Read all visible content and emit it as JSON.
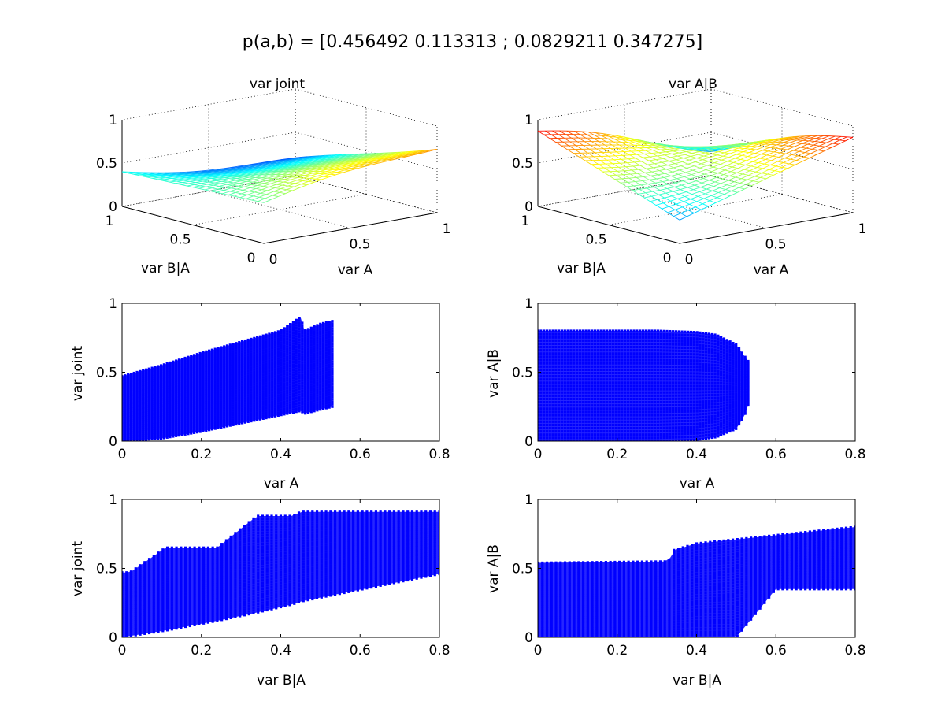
{
  "figure": {
    "title": "p(a,b) = [0.456492 0.113313 ; 0.0829211 0.347275]"
  },
  "chart_data": [
    {
      "id": "surf-joint",
      "type": "surface",
      "title": "var joint",
      "xlabel": "var A",
      "ylabel": "var B|A",
      "xlim": [
        0,
        1
      ],
      "ylim": [
        0,
        1
      ],
      "zlim": [
        0,
        1
      ],
      "xticks": [
        "0",
        "0.5",
        "1"
      ],
      "yticks": [
        "0",
        "0.5",
        "1"
      ],
      "zticks": [
        "0",
        "0.5",
        "1"
      ],
      "colormap": "jet",
      "grid": true
    },
    {
      "id": "surf-a-given-b",
      "type": "surface",
      "title": "var A|B",
      "xlabel": "var A",
      "ylabel": "var B|A",
      "xlim": [
        0,
        1
      ],
      "ylim": [
        0,
        1
      ],
      "zlim": [
        0,
        1
      ],
      "xticks": [
        "0",
        "0.5",
        "1"
      ],
      "yticks": [
        "0",
        "0.5",
        "1"
      ],
      "zticks": [
        "0",
        "0.5",
        "1"
      ],
      "colormap": "jet",
      "grid": true
    },
    {
      "id": "scatter-joint-vs-a",
      "type": "scatter",
      "xlabel": "var A",
      "ylabel": "var joint",
      "xlim": [
        0,
        0.8
      ],
      "ylim": [
        0,
        1
      ],
      "xticks": [
        "0",
        "0.2",
        "0.4",
        "0.6",
        "0.8"
      ],
      "yticks": [
        "0",
        "0.5",
        "1"
      ],
      "color": "#0000ff",
      "envelope_x": [
        0,
        0.1,
        0.2,
        0.3,
        0.4,
        0.45,
        0.46,
        0.5,
        0.53
      ],
      "envelope_upper": [
        0.47,
        0.55,
        0.64,
        0.72,
        0.8,
        0.9,
        0.8,
        0.85,
        0.87
      ],
      "envelope_lower": [
        0,
        0.02,
        0.07,
        0.13,
        0.19,
        0.22,
        0.2,
        0.23,
        0.25
      ]
    },
    {
      "id": "scatter-agivenb-vs-a",
      "type": "scatter",
      "xlabel": "var A",
      "ylabel": "var A|B",
      "xlim": [
        0,
        0.8
      ],
      "ylim": [
        0,
        1
      ],
      "xticks": [
        "0",
        "0.2",
        "0.4",
        "0.6",
        "0.8"
      ],
      "yticks": [
        "0",
        "0.5",
        "1"
      ],
      "color": "#0000ff",
      "envelope_x": [
        0,
        0.1,
        0.2,
        0.3,
        0.4,
        0.45,
        0.5,
        0.52,
        0.53
      ],
      "envelope_upper": [
        0.8,
        0.8,
        0.8,
        0.8,
        0.79,
        0.77,
        0.7,
        0.62,
        0.58
      ],
      "envelope_lower": [
        0,
        0,
        0,
        0,
        0.01,
        0.03,
        0.09,
        0.18,
        0.26
      ]
    },
    {
      "id": "scatter-joint-vs-ba",
      "type": "scatter",
      "xlabel": "var B|A",
      "ylabel": "var joint",
      "xlim": [
        0,
        0.8
      ],
      "ylim": [
        0,
        1
      ],
      "xticks": [
        "0",
        "0.2",
        "0.4",
        "0.6",
        "0.8"
      ],
      "yticks": [
        "0",
        "0.5",
        "1"
      ],
      "color": "#0000ff",
      "envelope_x": [
        0,
        0.02,
        0.11,
        0.24,
        0.34,
        0.43,
        0.45,
        0.8
      ],
      "envelope_upper": [
        0.47,
        0.47,
        0.65,
        0.65,
        0.88,
        0.88,
        0.91,
        0.91
      ],
      "envelope_lower": [
        0,
        0.01,
        0.05,
        0.12,
        0.18,
        0.24,
        0.26,
        0.46
      ]
    },
    {
      "id": "scatter-agivenb-vs-ba",
      "type": "scatter",
      "xlabel": "var B|A",
      "ylabel": "var A|B",
      "xlim": [
        0,
        0.8
      ],
      "ylim": [
        0,
        1
      ],
      "xticks": [
        "0",
        "0.2",
        "0.4",
        "0.6",
        "0.8"
      ],
      "yticks": [
        "0",
        "0.5",
        "1"
      ],
      "color": "#0000ff",
      "envelope_x": [
        0,
        0.33,
        0.34,
        0.4,
        0.5,
        0.6,
        0.7,
        0.8
      ],
      "envelope_upper": [
        0.54,
        0.55,
        0.63,
        0.68,
        0.71,
        0.74,
        0.77,
        0.8
      ],
      "envelope_lower": [
        0,
        0,
        0,
        0,
        0,
        0.35,
        0.35,
        0.35
      ]
    }
  ]
}
